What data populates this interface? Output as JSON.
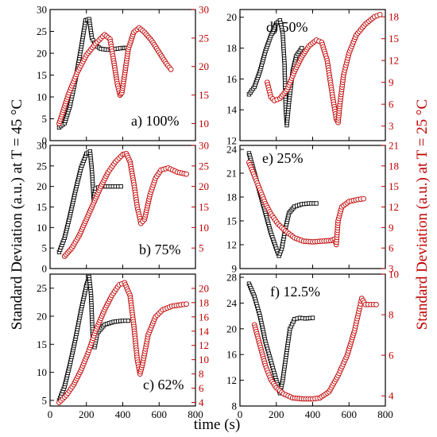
{
  "figure": {
    "xlabel": "time (s)",
    "ylabel_left": "Standard Deviation (a.u.) at T = 45 °C",
    "ylabel_right": "Standard Deviation (a.u.) at T = 25 °C",
    "colors": {
      "left_series": "#000000",
      "right_series": "#c00000",
      "right_axis": "#c00000"
    }
  },
  "chart_data": [
    {
      "type": "scatter",
      "label": "a) 100%",
      "xlim": [
        0,
        800
      ],
      "xticks": [
        0,
        200,
        400,
        600,
        800
      ],
      "ylim_left": [
        0,
        30
      ],
      "yticks_left": [
        0,
        5,
        10,
        15,
        20,
        25,
        30
      ],
      "ylim_right": [
        7,
        30
      ],
      "yticks_right": [
        10,
        15,
        20,
        25,
        30
      ],
      "series": [
        {
          "axis": "left",
          "marker": "square",
          "color": "#000000",
          "points": [
            [
              50,
              3
            ],
            [
              80,
              4
            ],
            [
              110,
              8
            ],
            [
              140,
              14
            ],
            [
              170,
              21
            ],
            [
              195,
              27.5
            ],
            [
              215,
              27.8
            ],
            [
              230,
              23.5
            ],
            [
              250,
              21.8
            ],
            [
              280,
              21
            ],
            [
              320,
              20.8
            ],
            [
              360,
              21
            ],
            [
              400,
              21.2
            ],
            [
              420,
              21.2
            ]
          ]
        },
        {
          "axis": "right",
          "marker": "circle",
          "color": "#c00000",
          "points": [
            [
              50,
              10
            ],
            [
              100,
              15
            ],
            [
              150,
              19
            ],
            [
              200,
              22
            ],
            [
              250,
              24
            ],
            [
              300,
              25.6
            ],
            [
              330,
              24.8
            ],
            [
              350,
              21
            ],
            [
              370,
              17
            ],
            [
              385,
              15
            ],
            [
              395,
              15.4
            ],
            [
              410,
              18.5
            ],
            [
              430,
              23
            ],
            [
              460,
              26
            ],
            [
              490,
              26.8
            ],
            [
              520,
              26
            ],
            [
              560,
              24.5
            ],
            [
              600,
              22.5
            ],
            [
              640,
              20.5
            ],
            [
              665,
              19.5
            ]
          ]
        }
      ]
    },
    {
      "type": "scatter",
      "label": "d) 50%",
      "xlim": [
        0,
        800
      ],
      "xticks": [
        0,
        200,
        400,
        600,
        800
      ],
      "ylim_left": [
        12,
        20.5
      ],
      "yticks_left": [
        12,
        14,
        16,
        18,
        20
      ],
      "ylim_right": [
        1,
        19
      ],
      "yticks_right": [
        3,
        6,
        9,
        12,
        15,
        18
      ],
      "series": [
        {
          "axis": "left",
          "marker": "square",
          "color": "#000000",
          "points": [
            [
              50,
              15
            ],
            [
              80,
              15.5
            ],
            [
              110,
              16.5
            ],
            [
              140,
              17.8
            ],
            [
              170,
              18.8
            ],
            [
              200,
              19.6
            ],
            [
              220,
              19.8
            ],
            [
              235,
              19
            ],
            [
              245,
              17
            ],
            [
              252,
              14
            ],
            [
              258,
              13
            ],
            [
              270,
              14.5
            ],
            [
              290,
              16.5
            ],
            [
              310,
              17.5
            ],
            [
              340,
              18
            ]
          ]
        },
        {
          "axis": "right",
          "marker": "circle",
          "color": "#c00000",
          "points": [
            [
              150,
              9
            ],
            [
              170,
              7
            ],
            [
              190,
              6.5
            ],
            [
              220,
              6.8
            ],
            [
              260,
              8
            ],
            [
              300,
              10.5
            ],
            [
              340,
              12.5
            ],
            [
              380,
              14
            ],
            [
              420,
              14.8
            ],
            [
              450,
              14.5
            ],
            [
              480,
              12
            ],
            [
              510,
              7
            ],
            [
              530,
              4
            ],
            [
              540,
              3.5
            ],
            [
              550,
              6
            ],
            [
              570,
              10
            ],
            [
              600,
              13
            ],
            [
              640,
              15.5
            ],
            [
              690,
              17
            ],
            [
              740,
              18
            ],
            [
              770,
              18.3
            ]
          ]
        }
      ]
    },
    {
      "type": "scatter",
      "label": "b) 75%",
      "xlim": [
        0,
        800
      ],
      "xticks": [
        0,
        200,
        400,
        600,
        800
      ],
      "ylim_left": [
        0,
        30
      ],
      "yticks_left": [
        0,
        5,
        10,
        15,
        20,
        25,
        30
      ],
      "ylim_right": [
        0,
        30
      ],
      "yticks_right": [
        5,
        10,
        15,
        20,
        25,
        30
      ],
      "series": [
        {
          "axis": "left",
          "marker": "square",
          "color": "#000000",
          "points": [
            [
              50,
              4
            ],
            [
              80,
              7.5
            ],
            [
              110,
              13
            ],
            [
              140,
              19
            ],
            [
              170,
              24.5
            ],
            [
              200,
              28
            ],
            [
              220,
              28.5
            ],
            [
              230,
              24
            ],
            [
              240,
              17
            ],
            [
              250,
              19.5
            ],
            [
              280,
              20
            ],
            [
              320,
              20
            ],
            [
              360,
              20
            ],
            [
              390,
              20
            ]
          ]
        },
        {
          "axis": "right",
          "marker": "circle",
          "color": "#c00000",
          "points": [
            [
              80,
              3
            ],
            [
              120,
              5
            ],
            [
              160,
              8
            ],
            [
              200,
              12
            ],
            [
              240,
              16
            ],
            [
              280,
              20
            ],
            [
              320,
              23.5
            ],
            [
              360,
              26
            ],
            [
              400,
              27.8
            ],
            [
              420,
              28
            ],
            [
              440,
              26
            ],
            [
              460,
              21
            ],
            [
              480,
              15
            ],
            [
              500,
              11
            ],
            [
              520,
              12
            ],
            [
              550,
              18
            ],
            [
              580,
              22
            ],
            [
              610,
              24
            ],
            [
              650,
              24.5
            ],
            [
              700,
              23.5
            ],
            [
              750,
              23
            ]
          ]
        }
      ]
    },
    {
      "type": "scatter",
      "label": "e) 25%",
      "xlim": [
        0,
        800
      ],
      "xticks": [
        0,
        200,
        400,
        600,
        800
      ],
      "ylim_left": [
        9,
        24.5
      ],
      "yticks_left": [
        9,
        12,
        15,
        18,
        21,
        24
      ],
      "ylim_right": [
        3,
        21
      ],
      "yticks_right": [
        3,
        6,
        9,
        12,
        15,
        18,
        21
      ],
      "series": [
        {
          "axis": "left",
          "marker": "square",
          "color": "#000000",
          "points": [
            [
              50,
              23.5
            ],
            [
              80,
              21
            ],
            [
              110,
              18.5
            ],
            [
              140,
              16
            ],
            [
              170,
              13.5
            ],
            [
              200,
              11.5
            ],
            [
              215,
              10.6
            ],
            [
              230,
              11.5
            ],
            [
              250,
              14
            ],
            [
              270,
              16
            ],
            [
              300,
              16.8
            ],
            [
              340,
              17.1
            ],
            [
              380,
              17.2
            ],
            [
              420,
              17.2
            ]
          ]
        },
        {
          "axis": "right",
          "marker": "circle",
          "color": "#c00000",
          "points": [
            [
              50,
              18.5
            ],
            [
              80,
              16.5
            ],
            [
              110,
              14.5
            ],
            [
              140,
              12.5
            ],
            [
              170,
              11
            ],
            [
              210,
              9.5
            ],
            [
              250,
              8.5
            ],
            [
              300,
              7.5
            ],
            [
              350,
              7
            ],
            [
              400,
              6.9
            ],
            [
              450,
              7
            ],
            [
              500,
              7.1
            ],
            [
              520,
              7.3
            ],
            [
              530,
              6.5
            ],
            [
              540,
              10
            ],
            [
              560,
              12
            ],
            [
              600,
              12.8
            ],
            [
              650,
              13.1
            ],
            [
              680,
              13.2
            ]
          ]
        }
      ]
    },
    {
      "type": "scatter",
      "label": "c) 62%",
      "xlim": [
        0,
        800
      ],
      "xticks": [
        0,
        200,
        400,
        600,
        800
      ],
      "ylim_left": [
        4,
        27.5
      ],
      "yticks_left": [
        5,
        10,
        15,
        20,
        25
      ],
      "ylim_right": [
        3.5,
        22
      ],
      "yticks_right": [
        4,
        6,
        8,
        10,
        12,
        14,
        16,
        18,
        20
      ],
      "series": [
        {
          "axis": "left",
          "marker": "square",
          "color": "#000000",
          "points": [
            [
              50,
              5
            ],
            [
              80,
              7.5
            ],
            [
              110,
              11.5
            ],
            [
              140,
              16
            ],
            [
              170,
              21
            ],
            [
              200,
              25.5
            ],
            [
              215,
              27
            ],
            [
              225,
              24
            ],
            [
              235,
              16
            ],
            [
              245,
              14.5
            ],
            [
              260,
              17
            ],
            [
              300,
              18.5
            ],
            [
              350,
              19
            ],
            [
              400,
              19.2
            ],
            [
              430,
              19.2
            ]
          ]
        },
        {
          "axis": "right",
          "marker": "circle",
          "color": "#c00000",
          "points": [
            [
              50,
              4
            ],
            [
              90,
              5
            ],
            [
              130,
              6.5
            ],
            [
              170,
              8.5
            ],
            [
              210,
              11
            ],
            [
              250,
              14
            ],
            [
              300,
              17
            ],
            [
              340,
              19
            ],
            [
              380,
              20.5
            ],
            [
              410,
              20.8
            ],
            [
              440,
              19
            ],
            [
              460,
              15
            ],
            [
              480,
              10
            ],
            [
              495,
              8
            ],
            [
              510,
              9.5
            ],
            [
              540,
              13.5
            ],
            [
              580,
              16
            ],
            [
              620,
              17
            ],
            [
              670,
              17.5
            ],
            [
              720,
              17.7
            ],
            [
              750,
              17.8
            ]
          ]
        }
      ]
    },
    {
      "type": "scatter",
      "label": "f) 12.5%",
      "xlim": [
        0,
        800
      ],
      "xticks": [
        0,
        200,
        400,
        600,
        800
      ],
      "ylim_left": [
        8,
        28.5
      ],
      "yticks_left": [
        8,
        12,
        16,
        20,
        24,
        28
      ],
      "ylim_right": [
        3.5,
        10
      ],
      "yticks_right": [
        4,
        6,
        8,
        10
      ],
      "series": [
        {
          "axis": "left",
          "marker": "square",
          "color": "#000000",
          "points": [
            [
              50,
              27
            ],
            [
              80,
              25
            ],
            [
              110,
              22
            ],
            [
              140,
              18
            ],
            [
              170,
              15
            ],
            [
              200,
              12
            ],
            [
              220,
              10
            ],
            [
              235,
              12
            ],
            [
              255,
              16
            ],
            [
              275,
              20
            ],
            [
              300,
              21.5
            ],
            [
              330,
              21.7
            ],
            [
              360,
              21.6
            ],
            [
              400,
              21.7
            ]
          ]
        },
        {
          "axis": "right",
          "marker": "circle",
          "color": "#c00000",
          "points": [
            [
              80,
              7.5
            ],
            [
              110,
              6.5
            ],
            [
              140,
              5.5
            ],
            [
              170,
              4.8
            ],
            [
              200,
              4.4
            ],
            [
              240,
              4.1
            ],
            [
              290,
              3.9
            ],
            [
              350,
              3.85
            ],
            [
              400,
              3.85
            ],
            [
              440,
              3.9
            ],
            [
              490,
              4.2
            ],
            [
              540,
              5
            ],
            [
              590,
              6
            ],
            [
              630,
              7.2
            ],
            [
              660,
              8.4
            ],
            [
              670,
              8.8
            ],
            [
              690,
              8.5
            ],
            [
              720,
              8.5
            ],
            [
              750,
              8.5
            ]
          ]
        }
      ]
    }
  ]
}
